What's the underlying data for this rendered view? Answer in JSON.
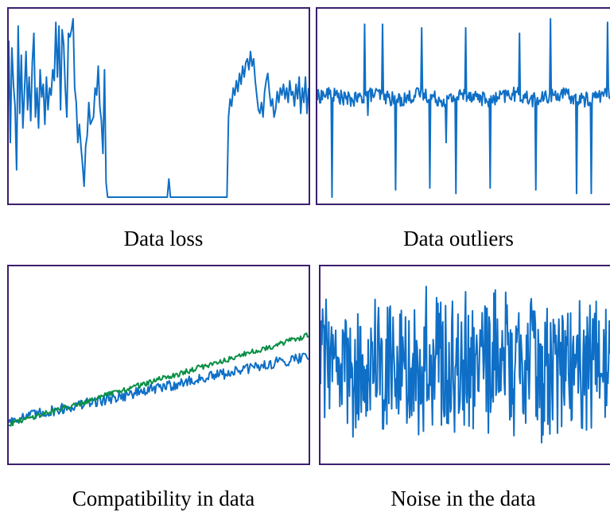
{
  "colors": {
    "frame": "#3b1f6e",
    "blue": "#0f6fc6",
    "green": "#0a8f45"
  },
  "panels": [
    {
      "caption": "Data loss",
      "chart_data": {
        "type": "line",
        "description": "signal with a flat segment of lost samples",
        "ylim": [
          0,
          1
        ],
        "series": [
          {
            "color": "#0f6fc6",
            "values": [
              0.86,
              0.3,
              0.82,
              0.62,
              0.5,
              0.15,
              0.94,
              0.46,
              0.78,
              0.38,
              0.58,
              0.8,
              0.48,
              0.66,
              0.42,
              0.74,
              0.9,
              0.44,
              0.6,
              0.38,
              0.7,
              0.55,
              0.62,
              0.4,
              0.66,
              0.48,
              0.6,
              0.56,
              0.7,
              0.64,
              0.96,
              0.66,
              0.94,
              0.48,
              0.92,
              0.84,
              0.6,
              0.44,
              0.9,
              0.88,
              0.92,
              0.98,
              0.6,
              0.52,
              0.3,
              0.4,
              0.28,
              0.18,
              0.06,
              0.28,
              0.34,
              0.52,
              0.4,
              0.42,
              0.44,
              0.6,
              0.56,
              0.72,
              0.5,
              0.42,
              0.24,
              0.7,
              0.08,
              0.0,
              0.0,
              0.0,
              0.0,
              0.0,
              0.0,
              0.0,
              0.0,
              0.0,
              0.0,
              0.0,
              0.0,
              0.0,
              0.0,
              0.0,
              0.0,
              0.0,
              0.0,
              0.0,
              0.0,
              0.0,
              0.0,
              0.0,
              0.0,
              0.0,
              0.0,
              0.0,
              0.0,
              0.0,
              0.0,
              0.0,
              0.0,
              0.0,
              0.0,
              0.0,
              0.0,
              0.0,
              0.0,
              0.0,
              0.1,
              0.0,
              0.0,
              0.0,
              0.0,
              0.0,
              0.0,
              0.0,
              0.0,
              0.0,
              0.0,
              0.0,
              0.0,
              0.0,
              0.0,
              0.0,
              0.0,
              0.0,
              0.0,
              0.0,
              0.0,
              0.0,
              0.0,
              0.0,
              0.0,
              0.0,
              0.0,
              0.0,
              0.0,
              0.0,
              0.0,
              0.0,
              0.0,
              0.0,
              0.0,
              0.0,
              0.0,
              0.0,
              0.44,
              0.54,
              0.5,
              0.6,
              0.56,
              0.64,
              0.58,
              0.68,
              0.62,
              0.72,
              0.66,
              0.74,
              0.76,
              0.7,
              0.8,
              0.72,
              0.76,
              0.64,
              0.56,
              0.48,
              0.46,
              0.52,
              0.44,
              0.58,
              0.64,
              0.68,
              0.58,
              0.5,
              0.54,
              0.44,
              0.48,
              0.58,
              0.52,
              0.6,
              0.56,
              0.62,
              0.54,
              0.6,
              0.52,
              0.64,
              0.56,
              0.58,
              0.5,
              0.62,
              0.54,
              0.66,
              0.46,
              0.6,
              0.52,
              0.66,
              0.46,
              0.6
            ]
          }
        ]
      }
    },
    {
      "caption": "Data outliers",
      "chart_data": {
        "type": "line",
        "description": "stationary signal with isolated spikes",
        "ylim": [
          0,
          1
        ],
        "series": [
          {
            "color": "#0f6fc6",
            "baseline": 0.55,
            "noise": 0.04,
            "count": 360,
            "spikes": [
              {
                "i": 18,
                "v": 0.0
              },
              {
                "i": 58,
                "v": 0.95
              },
              {
                "i": 62,
                "v": 0.45
              },
              {
                "i": 80,
                "v": 0.95
              },
              {
                "i": 96,
                "v": 0.04
              },
              {
                "i": 128,
                "v": 0.93
              },
              {
                "i": 138,
                "v": 0.05
              },
              {
                "i": 158,
                "v": 0.3
              },
              {
                "i": 170,
                "v": 0.02
              },
              {
                "i": 182,
                "v": 0.93
              },
              {
                "i": 212,
                "v": 0.05
              },
              {
                "i": 248,
                "v": 0.9
              },
              {
                "i": 268,
                "v": 0.04
              },
              {
                "i": 286,
                "v": 0.98
              },
              {
                "i": 318,
                "v": 0.02
              },
              {
                "i": 336,
                "v": 0.02
              },
              {
                "i": 356,
                "v": 0.96
              }
            ]
          }
        ]
      }
    },
    {
      "caption": "Compatibility in data",
      "chart_data": {
        "type": "line",
        "description": "two rising series that diverge over time",
        "ylim": [
          0,
          1
        ],
        "series": [
          {
            "color": "#0f6fc6",
            "start": 0.2,
            "end": 0.55,
            "noise": 0.03,
            "count": 300
          },
          {
            "color": "#0a8f45",
            "start": 0.18,
            "end": 0.66,
            "noise": 0.015,
            "count": 300
          }
        ]
      }
    },
    {
      "caption": "Noise in the data",
      "chart_data": {
        "type": "line",
        "description": "high-amplitude random noise",
        "ylim": [
          0,
          1
        ],
        "series": [
          {
            "color": "#0f6fc6",
            "center": 0.5,
            "amplitude": 0.44,
            "count": 420
          }
        ]
      }
    }
  ]
}
